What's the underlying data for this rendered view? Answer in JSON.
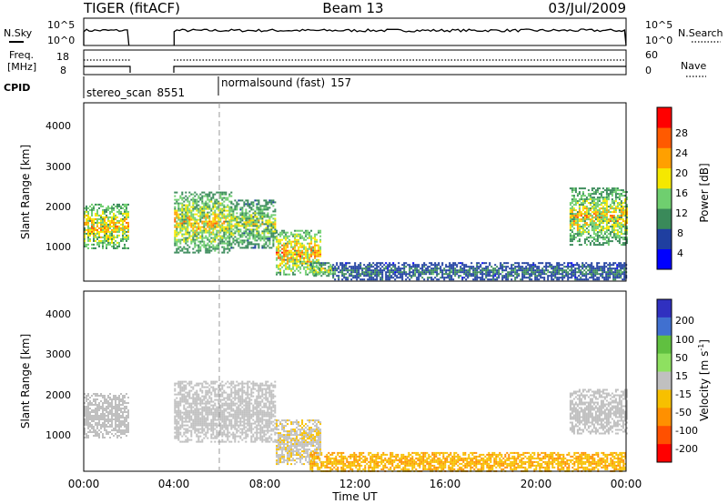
{
  "header": {
    "radar": "TIGER (fitACF)",
    "beam": "Beam 13",
    "date": "03/Jul/2009"
  },
  "nsky_panel": {
    "left_label": "N.Sky",
    "left_ticks": [
      "10^5",
      "10^0"
    ],
    "right_label": "N.Search",
    "right_ticks": [
      "10^5",
      "10^0"
    ]
  },
  "freq_panel": {
    "left_label_1": "Freq.",
    "left_label_2": "[MHz]",
    "left_ticks": [
      "18",
      "8"
    ],
    "right_label": "Nave",
    "right_ticks": [
      "60",
      "0"
    ]
  },
  "cpid_panel": {
    "label": "CPID",
    "segments": [
      {
        "name": "stereo_scan",
        "id": "8551",
        "start_hour": 0
      },
      {
        "name": "normalsound (fast)",
        "id": "157",
        "start_hour": 6
      }
    ]
  },
  "x_axis": {
    "label": "Time UT",
    "tick_labels": [
      "00:00",
      "04:00",
      "08:00",
      "12:00",
      "16:00",
      "20:00",
      "00:00"
    ],
    "range_hours": [
      0,
      24
    ]
  },
  "power_panel": {
    "ylabel": "Slant Range [km]",
    "y_ticks": [
      "1000",
      "2000",
      "3000",
      "4000"
    ],
    "colorbar_label": "Power [dB]",
    "colorbar_ticks": [
      "28",
      "24",
      "20",
      "16",
      "12",
      "8",
      "4"
    ]
  },
  "velocity_panel": {
    "ylabel": "Slant Range [km]",
    "y_ticks": [
      "1000",
      "2000",
      "3000",
      "4000"
    ],
    "colorbar_label": "Velocity [m s",
    "colorbar_label_sup": "-1",
    "colorbar_label_end": "]",
    "colorbar_ticks": [
      "200",
      "100",
      "50",
      "15",
      "-15",
      "-50",
      "-100",
      "-200"
    ]
  },
  "colors": {
    "power_scale": [
      "#0000ff",
      "#1f3fa0",
      "#3a8a5a",
      "#6fcf6f",
      "#f5e800",
      "#ffa000",
      "#ff5a00",
      "#ff0000"
    ],
    "velocity_scale": [
      "#3030c0",
      "#4070d0",
      "#60c040",
      "#8ee060",
      "#c0c0c0",
      "#f7c000",
      "#ff9000",
      "#ff5000",
      "#ff0000"
    ]
  },
  "chart_data": [
    {
      "type": "heatmap",
      "title": "Power [dB]",
      "xlabel": "Time UT",
      "ylabel": "Slant Range [km]",
      "xlim": [
        0,
        24
      ],
      "ylim": [
        180,
        4600
      ],
      "zlim": [
        0,
        32
      ],
      "regions": [
        {
          "t": [
            0.0,
            2.0
          ],
          "r": [
            1000,
            2100
          ],
          "peak_db": 26
        },
        {
          "t": [
            4.0,
            6.5
          ],
          "r": [
            900,
            2400
          ],
          "peak_db": 24
        },
        {
          "t": [
            6.5,
            8.5
          ],
          "r": [
            1000,
            2200
          ],
          "peak_db": 20
        },
        {
          "t": [
            8.5,
            10.5
          ],
          "r": [
            350,
            1450
          ],
          "peak_db": 28
        },
        {
          "t": [
            10.0,
            11.0
          ],
          "r": [
            300,
            650
          ],
          "peak_db": 20
        },
        {
          "t": [
            11.0,
            24.0
          ],
          "r": [
            200,
            650
          ],
          "peak_db": 10
        },
        {
          "t": [
            21.5,
            24.0
          ],
          "r": [
            1100,
            2500
          ],
          "peak_db": 24
        }
      ]
    },
    {
      "type": "heatmap",
      "title": "Velocity [m s-1]",
      "xlabel": "Time UT",
      "ylabel": "Slant Range [km]",
      "xlim": [
        0,
        24
      ],
      "ylim": [
        180,
        4600
      ],
      "zlim": [
        -250,
        250
      ],
      "regions": [
        {
          "t": [
            0.0,
            2.0
          ],
          "r": [
            1000,
            2100
          ],
          "velocity": 0
        },
        {
          "t": [
            4.0,
            8.5
          ],
          "r": [
            900,
            2400
          ],
          "velocity": 0
        },
        {
          "t": [
            8.5,
            10.5
          ],
          "r": [
            350,
            1450
          ],
          "velocity": -10
        },
        {
          "t": [
            10.0,
            24.0
          ],
          "r": [
            200,
            650
          ],
          "velocity": -40
        },
        {
          "t": [
            21.5,
            24.0
          ],
          "r": [
            1100,
            2200
          ],
          "velocity": 0
        }
      ]
    }
  ]
}
